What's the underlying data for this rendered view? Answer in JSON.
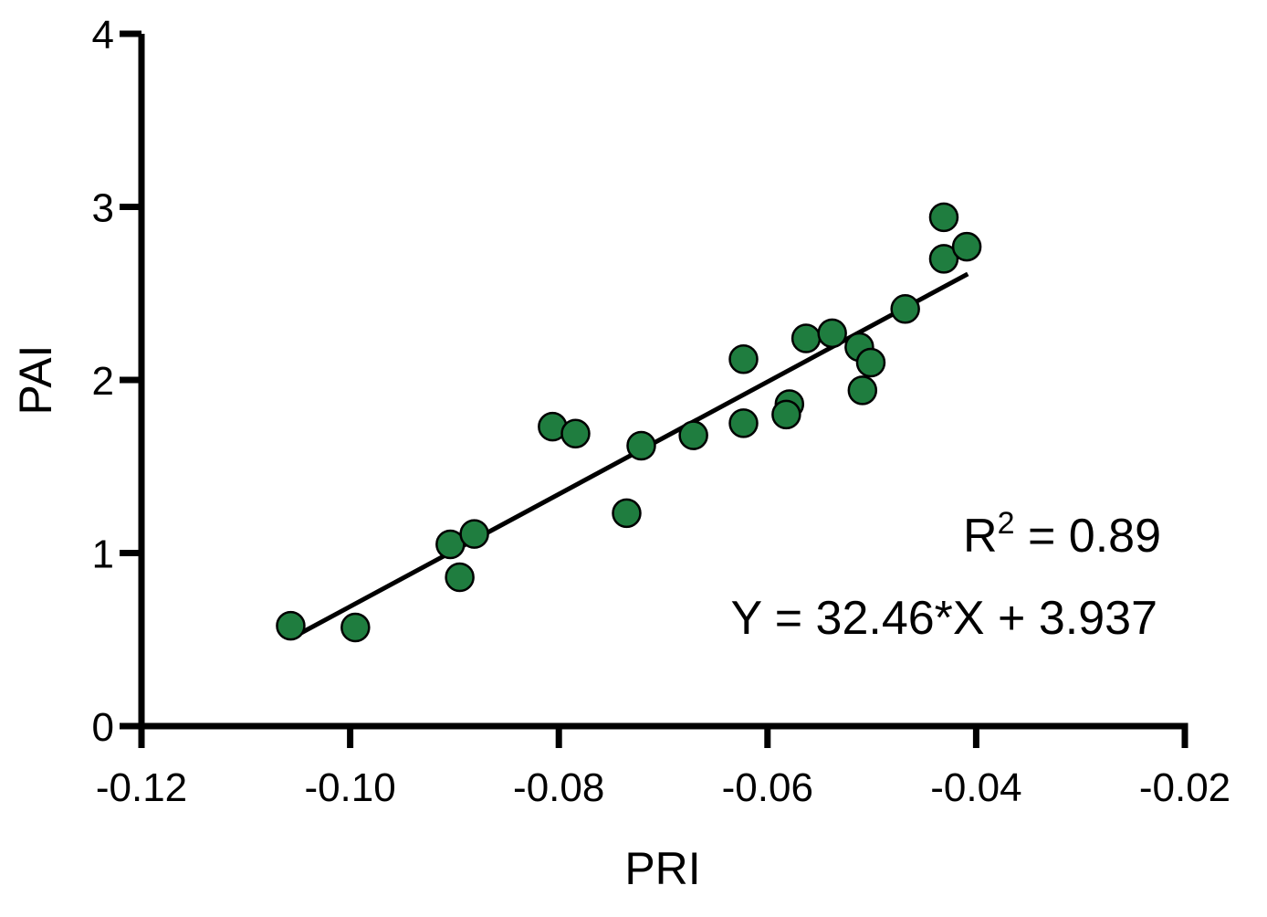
{
  "chart_data": {
    "type": "scatter",
    "title": "",
    "xlabel": "PRI",
    "ylabel": "PAI",
    "xlim": [
      -0.12,
      -0.02
    ],
    "ylim": [
      0,
      4
    ],
    "x_ticks": [
      -0.12,
      -0.1,
      -0.08,
      -0.06,
      -0.04,
      -0.02
    ],
    "x_tick_labels": [
      "-0.12",
      "-0.10",
      "-0.08",
      "-0.06",
      "-0.04",
      "-0.02"
    ],
    "y_ticks": [
      0,
      1,
      2,
      3,
      4
    ],
    "y_tick_labels": [
      "0",
      "1",
      "2",
      "3",
      "4"
    ],
    "grid": false,
    "legend": "none",
    "marker_color": "#1f7d3f",
    "marker_edge_color": "#000000",
    "line_color": "#000000",
    "series": [
      {
        "points": [
          {
            "x": -0.1057,
            "y": 0.58
          },
          {
            "x": -0.0995,
            "y": 0.57
          },
          {
            "x": -0.0904,
            "y": 1.05
          },
          {
            "x": -0.0895,
            "y": 0.86
          },
          {
            "x": -0.0881,
            "y": 1.11
          },
          {
            "x": -0.0806,
            "y": 1.73
          },
          {
            "x": -0.0784,
            "y": 1.69
          },
          {
            "x": -0.0735,
            "y": 1.23
          },
          {
            "x": -0.0721,
            "y": 1.62
          },
          {
            "x": -0.0671,
            "y": 1.68
          },
          {
            "x": -0.0623,
            "y": 2.12
          },
          {
            "x": -0.0623,
            "y": 1.75
          },
          {
            "x": -0.0579,
            "y": 1.86
          },
          {
            "x": -0.0582,
            "y": 1.8
          },
          {
            "x": -0.0563,
            "y": 2.24
          },
          {
            "x": -0.0538,
            "y": 2.27
          },
          {
            "x": -0.0512,
            "y": 2.19
          },
          {
            "x": -0.0501,
            "y": 2.1
          },
          {
            "x": -0.0509,
            "y": 1.94
          },
          {
            "x": -0.0468,
            "y": 2.41
          },
          {
            "x": -0.0431,
            "y": 2.94
          },
          {
            "x": -0.0431,
            "y": 2.7
          },
          {
            "x": -0.0409,
            "y": 2.77
          }
        ]
      }
    ],
    "fit_line": {
      "slope": 32.46,
      "intercept": 3.937,
      "x_range": [
        -0.1055,
        -0.0408
      ]
    },
    "annotations": {
      "r2_base": "R",
      "r2_sup": "2",
      "r2_rest": " = 0.89",
      "equation": "Y = 32.46*X + 3.937"
    }
  }
}
